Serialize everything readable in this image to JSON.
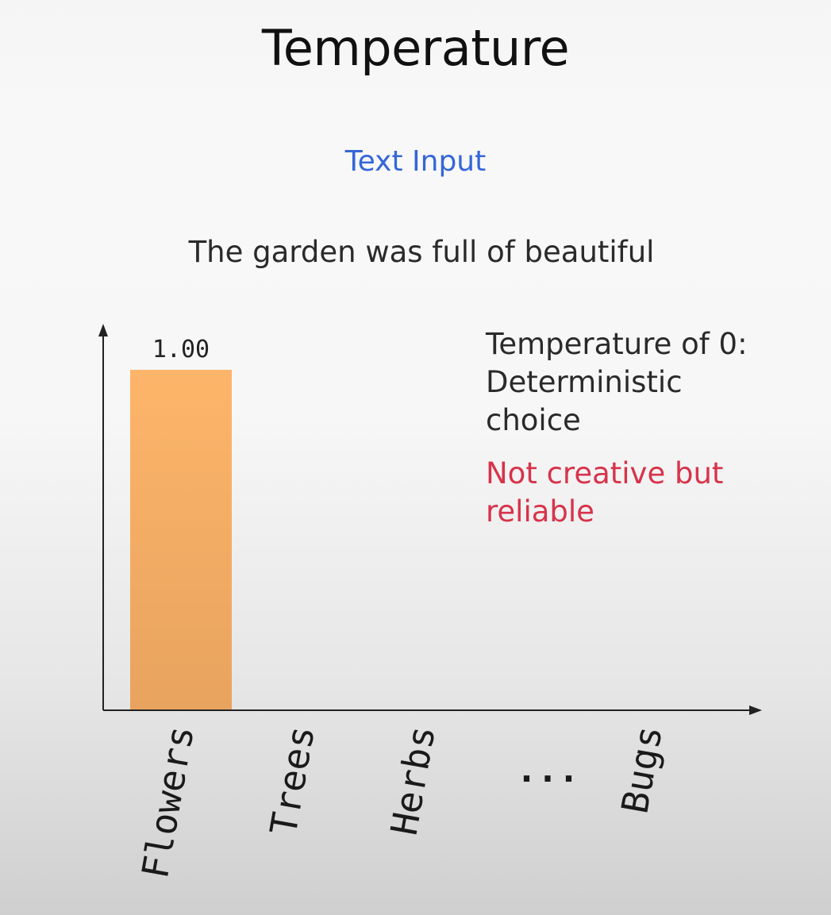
{
  "slide": {
    "title": "Temperature",
    "subtitle": "Text Input",
    "prompt": "The garden was full of beautiful",
    "note": [
      "Temperature of 0:",
      "Deterministic",
      "choice"
    ],
    "note_emphasis": [
      "Not creative but",
      "reliable"
    ]
  },
  "colors": {
    "bar_top": "#fdb56a",
    "bar_bottom": "#e8a35e",
    "subtitle": "#3566d8",
    "emphasis": "#d7334a",
    "axis": "#222222"
  },
  "chart_data": {
    "type": "bar",
    "categories": [
      "Flowers",
      "Trees",
      "Herbs",
      "...",
      "Bugs"
    ],
    "values": [
      1.0,
      0,
      0,
      0,
      0
    ],
    "data_labels": [
      "1.00",
      "",
      "",
      "",
      ""
    ],
    "ylim": [
      0,
      1.0
    ],
    "grid": false,
    "xlabel": "",
    "ylabel": ""
  }
}
